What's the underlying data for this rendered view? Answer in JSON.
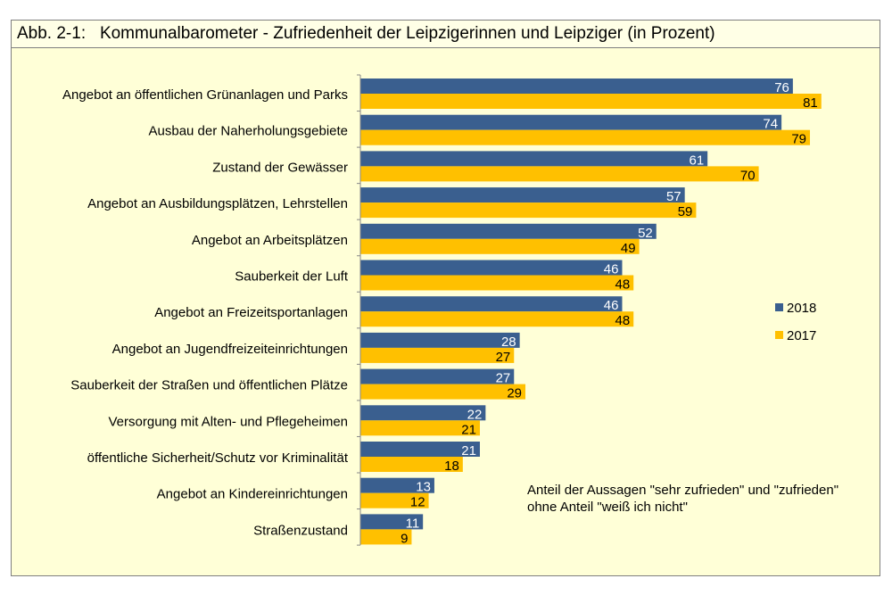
{
  "chart_data": {
    "type": "bar",
    "orientation": "horizontal",
    "title": "Abb. 2-1:   Kommunalbarometer - Zufriedenheit der Leipzigerinnen und Leipziger (in Prozent)",
    "categories": [
      "Angebot an öffentlichen Grünanlagen und Parks",
      "Ausbau der Naherholungsgebiete",
      "Zustand der Gewässer",
      "Angebot an Ausbildungsplätzen, Lehrstellen",
      "Angebot an Arbeitsplätzen",
      "Sauberkeit der Luft",
      "Angebot an Freizeitsportanlagen",
      "Angebot an Jugendfreizeiteinrichtungen",
      "Sauberkeit der Straßen und öffentlichen Plätze",
      "Versorgung mit Alten- und Pflegeheimen",
      "öffentliche Sicherheit/Schutz vor Kriminalität",
      "Angebot an Kindereinrichtungen",
      "Straßenzustand"
    ],
    "series": [
      {
        "name": "2018",
        "color": "#3A5F8F",
        "values": [
          76,
          74,
          61,
          57,
          52,
          46,
          46,
          28,
          27,
          22,
          21,
          13,
          11
        ]
      },
      {
        "name": "2017",
        "color": "#FFC000",
        "values": [
          81,
          79,
          70,
          59,
          49,
          48,
          48,
          27,
          29,
          21,
          18,
          12,
          9
        ]
      }
    ],
    "xlim": [
      0,
      90
    ],
    "grid": false,
    "legend_position": "right",
    "annotation": [
      "Anteil der Aussagen \"sehr zufrieden\" und \"zufrieden\"",
      "ohne Anteil \"weiß ich nicht\""
    ],
    "background": "#FFFFD7"
  }
}
